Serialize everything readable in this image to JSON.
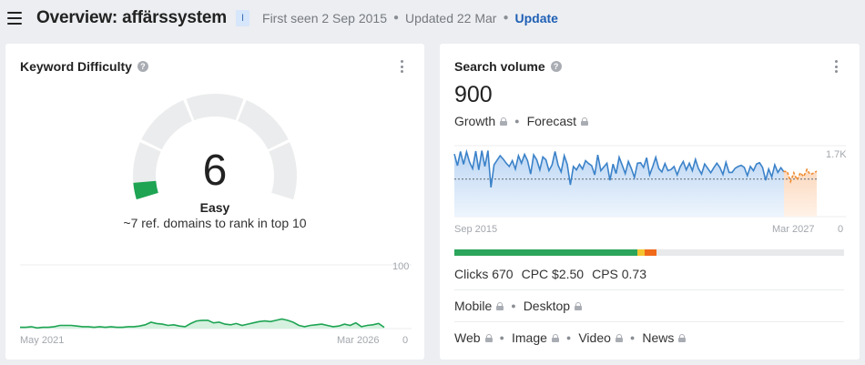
{
  "header": {
    "title": "Overview: affärssystem",
    "badge": "I",
    "first_seen": "First seen 2 Sep 2015",
    "updated": "Updated 22 Mar",
    "update_link": "Update"
  },
  "kd_card": {
    "title": "Keyword Difficulty",
    "value": "6",
    "label": "Easy",
    "subtitle": "~7 ref. domains to rank in top 10",
    "difficulty_fraction": 0.06,
    "colors": {
      "gauge_track": "#ebeced",
      "gauge_fill": "#1ea453",
      "line": "#1ea453",
      "area": "#d6f1df"
    }
  },
  "sv_card": {
    "title": "Search volume",
    "value": "900",
    "tabs": [
      {
        "label": "Growth",
        "locked": true
      },
      {
        "label": "Forecast",
        "locked": true
      }
    ],
    "clicks": "Clicks 670",
    "cpc": "CPC $2.50",
    "cps": "CPS 0.73",
    "devices": [
      {
        "label": "Mobile",
        "locked": true
      },
      {
        "label": "Desktop",
        "locked": true
      }
    ],
    "search_types": [
      {
        "label": "Web",
        "locked": true
      },
      {
        "label": "Image",
        "locked": true
      },
      {
        "label": "Video",
        "locked": true
      },
      {
        "label": "News",
        "locked": true
      }
    ],
    "click_distribution": [
      {
        "name": "organic",
        "fraction": 0.47,
        "color": "#2ca55c"
      },
      {
        "name": "paid",
        "fraction": 0.018,
        "color": "#f4c430"
      },
      {
        "name": "other",
        "fraction": 0.03,
        "color": "#f06a1a"
      }
    ]
  },
  "chart_data": [
    {
      "type": "area",
      "xlabel_start": "May 2021",
      "xlabel_end": "Mar 2026",
      "ymax_label": "100",
      "ymin_label": "0",
      "ylim": [
        0,
        100
      ],
      "series": [
        {
          "values": [
            2,
            2,
            3,
            1,
            2,
            2,
            3,
            5,
            5,
            5,
            4,
            3,
            3,
            2,
            3,
            2,
            3,
            2,
            2,
            3,
            3,
            4,
            6,
            10,
            8,
            7,
            5,
            6,
            4,
            3,
            8,
            12,
            13,
            13,
            9,
            10,
            7,
            6,
            8,
            5,
            7,
            9,
            11,
            12,
            11,
            13,
            15,
            13,
            10,
            5,
            3,
            5,
            6,
            7,
            5,
            3,
            4,
            7,
            5,
            9,
            3,
            5,
            6,
            8,
            2
          ]
        }
      ]
    },
    {
      "type": "line",
      "xlabel_start": "Sep 2015",
      "xlabel_end": "Mar 2027",
      "ymax_label": "1.7K",
      "ymin_label": "0",
      "ylim": [
        0,
        1700
      ],
      "average": 900,
      "series": [
        {
          "values": [
            1500,
            1220,
            1560,
            1250,
            1550,
            1300,
            1150,
            1570,
            1120,
            1580,
            1200,
            1580,
            700,
            1240,
            1350,
            1460,
            1380,
            1280,
            1200,
            1340,
            1140,
            1460,
            1280,
            1490,
            1340,
            1020,
            1480,
            1360,
            1120,
            1430,
            1360,
            1100,
            1240,
            1560,
            1230,
            1070,
            1460,
            1250,
            760,
            1200,
            1120,
            1250,
            1140,
            1340,
            1270,
            1220,
            1000,
            1480,
            1100,
            1190,
            1280,
            870,
            1260,
            1030,
            1420,
            1230,
            1030,
            1320,
            1150,
            940,
            1280,
            1290,
            1180,
            1410,
            1000,
            1200,
            1420,
            1150,
            1070,
            1270,
            1100,
            1130,
            1200,
            1000,
            1190,
            1320,
            1120,
            1280,
            1100,
            1370,
            1150,
            1020,
            1260,
            1160,
            1050,
            1170,
            1280,
            1180,
            1010,
            1300,
            1060,
            1060,
            1160,
            1200,
            1230,
            1180,
            980,
            1200,
            1100,
            1260,
            1290,
            1180,
            870,
            1140,
            950,
            1240,
            1060,
            1170,
            1070
          ]
        },
        {
          "name": "forecast",
          "values": [
            1080,
            1080,
            840,
            1050,
            880,
            1050,
            960,
            1130,
            1010,
            1040,
            1090
          ]
        }
      ]
    }
  ]
}
